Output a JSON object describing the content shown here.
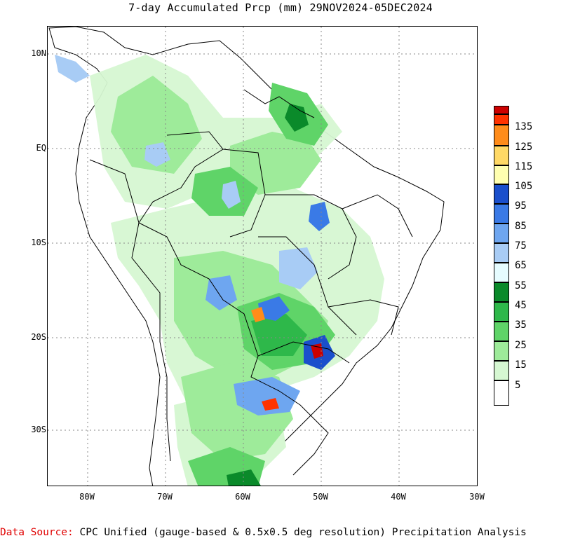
{
  "title": "7-day Accumulated Prcp (mm) 29NOV2024-05DEC2024",
  "lat_labels": [
    "10N",
    "EQ",
    "10S",
    "20S",
    "30S"
  ],
  "lon_labels": [
    "80W",
    "70W",
    "60W",
    "50W",
    "40W",
    "30W"
  ],
  "legend": {
    "labels": [
      "135",
      "125",
      "115",
      "105",
      "95",
      "85",
      "75",
      "65",
      "55",
      "45",
      "35",
      "25",
      "15",
      "5"
    ],
    "colors": [
      "#cc0000",
      "#ff3300",
      "#ff8c1a",
      "#ffd966",
      "#ffffb0",
      "#1a4fcc",
      "#3a7ae6",
      "#6ea6f0",
      "#a8ccf5",
      "#e6fcff",
      "#0a8a2a",
      "#2eb84a",
      "#5fd468",
      "#9eeb9a",
      "#d6f7d2",
      "#ffffff"
    ]
  },
  "source": {
    "prefix": "Data Source:",
    "text": " CPC Unified (gauge-based & 0.5x0.5 deg resolution) Precipitation Analysis"
  }
}
